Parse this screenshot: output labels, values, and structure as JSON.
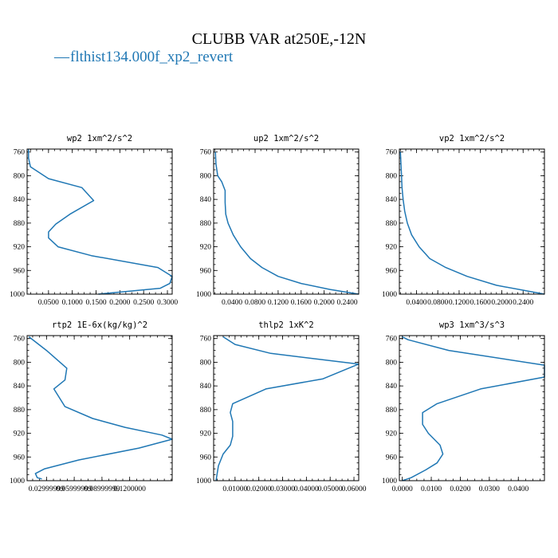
{
  "figure": {
    "title": "CLUBB VAR at250E,-12N",
    "legend_label": "flthist134.000f_xp2_revert",
    "legend_marker": "—"
  },
  "colors": {
    "line": "#1f77b4",
    "axes": "#000000",
    "background": "#ffffff"
  },
  "chart_data": [
    {
      "type": "line",
      "title": "wp2   1xm^2/s^2",
      "yticks": [
        "760",
        "800",
        "840",
        "880",
        "920",
        "960",
        "1000"
      ],
      "xticks": [
        "0.0500",
        "0.1000",
        "0.1500",
        "0.2000",
        "0.2500",
        "0.3000"
      ],
      "xtick_values": [
        0.05,
        0.1,
        0.15,
        0.2,
        0.25,
        0.3
      ],
      "xlim": [
        0.005,
        0.31
      ],
      "ylim": [
        1000,
        755
      ],
      "y_inverted": true,
      "series": [
        {
          "x": [
            0.008,
            0.008,
            0.012,
            0.05,
            0.12,
            0.145,
            0.095,
            0.065,
            0.05,
            0.05,
            0.07,
            0.14,
            0.28,
            0.31,
            0.305,
            0.285,
            0.155
          ],
          "y": [
            755,
            770,
            785,
            805,
            820,
            842,
            865,
            882,
            895,
            905,
            920,
            935,
            955,
            970,
            982,
            990,
            1000
          ]
        }
      ]
    },
    {
      "type": "line",
      "title": "up2   1xm^2/s^2",
      "yticks": [
        "760",
        "800",
        "840",
        "880",
        "920",
        "960",
        "1000"
      ],
      "xticks": [
        "0.0400",
        "0.0800",
        "0.1200",
        "0.1600",
        "0.2000",
        "0.2400"
      ],
      "xtick_values": [
        0.04,
        0.08,
        0.12,
        0.16,
        0.2,
        0.24
      ],
      "xlim": [
        0.008,
        0.26
      ],
      "ylim": [
        1000,
        755
      ],
      "y_inverted": true,
      "series": [
        {
          "x": [
            0.011,
            0.012,
            0.015,
            0.022,
            0.028,
            0.028,
            0.029,
            0.033,
            0.042,
            0.055,
            0.072,
            0.092,
            0.12,
            0.16,
            0.21,
            0.26
          ],
          "y": [
            760,
            780,
            800,
            810,
            825,
            845,
            865,
            880,
            900,
            920,
            940,
            955,
            970,
            982,
            992,
            1000
          ]
        }
      ]
    },
    {
      "type": "line",
      "title": "vp2   1xm^2/s^2",
      "yticks": [
        "760",
        "800",
        "840",
        "880",
        "920",
        "960",
        "1000"
      ],
      "xticks": [
        "0.0400",
        "0.0800",
        "0.1200",
        "0.1600",
        "0.2000",
        "0.2400"
      ],
      "xtick_values": [
        0.04,
        0.08,
        0.12,
        0.16,
        0.2,
        0.24
      ],
      "xlim": [
        0.008,
        0.28
      ],
      "ylim": [
        1000,
        755
      ],
      "y_inverted": true,
      "series": [
        {
          "x": [
            0.01,
            0.011,
            0.012,
            0.013,
            0.015,
            0.018,
            0.023,
            0.031,
            0.045,
            0.065,
            0.095,
            0.135,
            0.19,
            0.28
          ],
          "y": [
            760,
            780,
            800,
            820,
            840,
            860,
            880,
            900,
            920,
            940,
            955,
            970,
            985,
            1000
          ]
        }
      ]
    },
    {
      "type": "line",
      "title": "rtp2   1E-6x(kg/kg)^2",
      "yticks": [
        "760",
        "800",
        "840",
        "880",
        "920",
        "960",
        "1000"
      ],
      "xticks": [
        "0.02999999",
        "0.05999999",
        "0.08999999",
        "0.1200000"
      ],
      "xtick_values": [
        0.03,
        0.06,
        0.09,
        0.12
      ],
      "xlim": [
        0.009,
        0.166
      ],
      "ylim": [
        1000,
        755
      ],
      "y_inverted": true,
      "series": [
        {
          "x": [
            0.011,
            0.03,
            0.052,
            0.05,
            0.038,
            0.05,
            0.08,
            0.115,
            0.155,
            0.166,
            0.13,
            0.065,
            0.028,
            0.018,
            0.02,
            0.025
          ],
          "y": [
            757,
            780,
            810,
            830,
            845,
            875,
            895,
            910,
            923,
            930,
            945,
            965,
            980,
            988,
            995,
            997
          ]
        }
      ]
    },
    {
      "type": "line",
      "title": "thlp2   1xK^2",
      "yticks": [
        "760",
        "800",
        "840",
        "880",
        "920",
        "960",
        "1000"
      ],
      "xticks": [
        "0.01000",
        "0.02000",
        "0.03000",
        "0.04000",
        "0.05000",
        "0.06000"
      ],
      "xtick_values": [
        0.01,
        0.02,
        0.03,
        0.04,
        0.05,
        0.06
      ],
      "xlim": [
        0.001,
        0.062
      ],
      "ylim": [
        1000,
        755
      ],
      "y_inverted": true,
      "series": [
        {
          "x": [
            0.005,
            0.01,
            0.025,
            0.062,
            0.047,
            0.023,
            0.009,
            0.008,
            0.009,
            0.009,
            0.009,
            0.008,
            0.005,
            0.003,
            0.002
          ],
          "y": [
            757,
            770,
            785,
            803,
            828,
            845,
            870,
            885,
            900,
            915,
            925,
            940,
            955,
            975,
            1000
          ]
        }
      ]
    },
    {
      "type": "line",
      "title": "wp3   1xm^3/s^3",
      "yticks": [
        "760",
        "800",
        "840",
        "880",
        "920",
        "960",
        "1000"
      ],
      "xticks": [
        "0.0000",
        "0.0100",
        "0.0200",
        "0.0300",
        "0.0400"
      ],
      "xtick_values": [
        0.0,
        0.01,
        0.02,
        0.03,
        0.04
      ],
      "xlim": [
        -0.001,
        0.049
      ],
      "ylim": [
        1000,
        755
      ],
      "y_inverted": true,
      "series": [
        {
          "x": [
            0.0,
            0.002,
            0.016,
            0.049,
            0.049,
            0.027,
            0.012,
            0.007,
            0.007,
            0.009,
            0.013,
            0.014,
            0.012,
            0.008,
            0.003,
            0.0
          ],
          "y": [
            757,
            762,
            780,
            805,
            825,
            845,
            870,
            885,
            905,
            920,
            940,
            955,
            970,
            982,
            995,
            1000
          ]
        }
      ]
    }
  ]
}
